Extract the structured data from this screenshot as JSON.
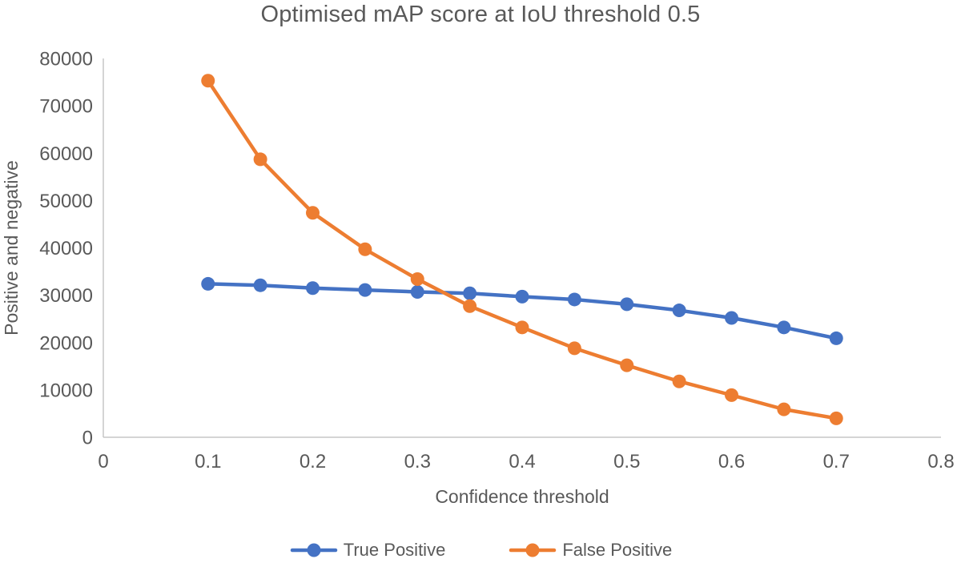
{
  "chart_data": {
    "type": "line",
    "title": "Optimised mAP score at IoU threshold 0.5",
    "xlabel": "Confidence threshold",
    "ylabel": "Positive and negative",
    "xlim": [
      0,
      0.8
    ],
    "ylim": [
      0,
      80000
    ],
    "x_tick_values": [
      0,
      0.1,
      0.2,
      0.3,
      0.4,
      0.5,
      0.6,
      0.7,
      0.8
    ],
    "x_tick_labels": [
      "0",
      "0.1",
      "0.2",
      "0.3",
      "0.4",
      "0.5",
      "0.6",
      "0.7",
      "0.8"
    ],
    "y_tick_values": [
      0,
      10000,
      20000,
      30000,
      40000,
      50000,
      60000,
      70000,
      80000
    ],
    "y_tick_labels": [
      "0",
      "10000",
      "20000",
      "30000",
      "40000",
      "50000",
      "60000",
      "70000",
      "80000"
    ],
    "grid": false,
    "legend_position": "bottom",
    "x": [
      0.1,
      0.15,
      0.2,
      0.25,
      0.3,
      0.35,
      0.4,
      0.45,
      0.5,
      0.55,
      0.6,
      0.65,
      0.7
    ],
    "series": [
      {
        "name": "True Positive",
        "color": "#4472C4",
        "values": [
          32400,
          32100,
          31500,
          31100,
          30700,
          30400,
          29700,
          29100,
          28100,
          26800,
          25200,
          23200,
          20900
        ]
      },
      {
        "name": "False Positive",
        "color": "#ED7D31",
        "values": [
          75300,
          58700,
          47400,
          39700,
          33400,
          27700,
          23200,
          18800,
          15200,
          11800,
          8900,
          5900,
          4000
        ]
      }
    ]
  },
  "colors": {
    "text": "#595959",
    "axis_line": "#C6C6C6",
    "background": "#FFFFFF"
  }
}
